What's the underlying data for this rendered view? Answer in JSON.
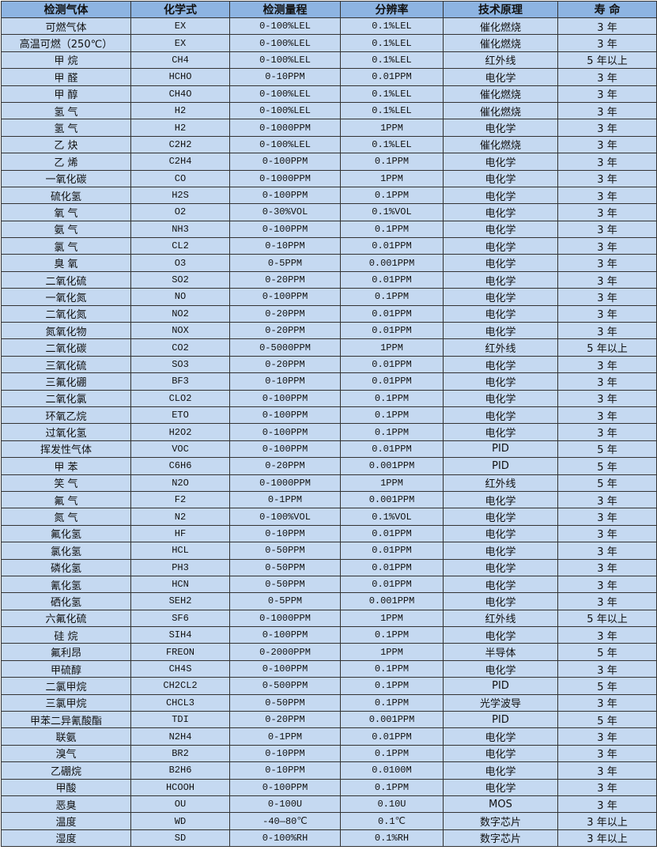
{
  "colors": {
    "header_bg": "#8db4e2",
    "row_bg": "#c5d9f1",
    "border": "#333333"
  },
  "headers": [
    "检测气体",
    "化学式",
    "检测量程",
    "分辨率",
    "技术原理",
    "寿 命"
  ],
  "rows": [
    [
      "可燃气体",
      "EX",
      "0-100%LEL",
      "0.1%LEL",
      "催化燃烧",
      "3 年"
    ],
    [
      "高温可燃（250℃）",
      "EX",
      "0-100%LEL",
      "0.1%LEL",
      "催化燃烧",
      "3 年"
    ],
    [
      "甲 烷",
      "CH4",
      "0-100%LEL",
      "0.1%LEL",
      "红外线",
      "5 年以上"
    ],
    [
      "甲 醛",
      "HCHO",
      "0-10PPM",
      "0.01PPM",
      "电化学",
      "3 年"
    ],
    [
      "甲 醇",
      "CH4O",
      "0-100%LEL",
      "0.1%LEL",
      "催化燃烧",
      "3 年"
    ],
    [
      "氢 气",
      "H2",
      "0-100%LEL",
      "0.1%LEL",
      "催化燃烧",
      "3 年"
    ],
    [
      "氢 气",
      "H2",
      "0-1000PPM",
      "1PPM",
      "电化学",
      "3 年"
    ],
    [
      "乙 炔",
      "C2H2",
      "0-100%LEL",
      "0.1%LEL",
      "催化燃烧",
      "3 年"
    ],
    [
      "乙 烯",
      "C2H4",
      "0-100PPM",
      "0.1PPM",
      "电化学",
      "3 年"
    ],
    [
      "一氧化碳",
      "CO",
      "0-1000PPM",
      "1PPM",
      "电化学",
      "3 年"
    ],
    [
      "硫化氢",
      "H2S",
      "0-100PPM",
      "0.1PPM",
      "电化学",
      "3 年"
    ],
    [
      "氧 气",
      "O2",
      "0-30%VOL",
      "0.1%VOL",
      "电化学",
      "3 年"
    ],
    [
      "氨 气",
      "NH3",
      "0-100PPM",
      "0.1PPM",
      "电化学",
      "3 年"
    ],
    [
      "氯 气",
      "CL2",
      "0-10PPM",
      "0.01PPM",
      "电化学",
      "3 年"
    ],
    [
      "臭 氧",
      "O3",
      "0-5PPM",
      "0.001PPM",
      "电化学",
      "3 年"
    ],
    [
      "二氧化硫",
      "SO2",
      "0-20PPM",
      "0.01PPM",
      "电化学",
      "3 年"
    ],
    [
      "一氧化氮",
      "NO",
      "0-100PPM",
      "0.1PPM",
      "电化学",
      "3 年"
    ],
    [
      "二氧化氮",
      "NO2",
      "0-20PPM",
      "0.01PPM",
      "电化学",
      "3 年"
    ],
    [
      "氮氧化物",
      "NOX",
      "0-20PPM",
      "0.01PPM",
      "电化学",
      "3 年"
    ],
    [
      "二氧化碳",
      "CO2",
      "0-5000PPM",
      "1PPM",
      "红外线",
      "5 年以上"
    ],
    [
      "三氧化硫",
      "SO3",
      "0-20PPM",
      "0.01PPM",
      "电化学",
      "3 年"
    ],
    [
      "三氟化硼",
      "BF3",
      "0-10PPM",
      "0.01PPM",
      "电化学",
      "3 年"
    ],
    [
      "二氧化氯",
      "CLO2",
      "0-100PPM",
      "0.1PPM",
      "电化学",
      "3 年"
    ],
    [
      "环氧乙烷",
      "ETO",
      "0-100PPM",
      "0.1PPM",
      "电化学",
      "3 年"
    ],
    [
      "过氧化氢",
      "H2O2",
      "0-100PPM",
      "0.1PPM",
      "电化学",
      "3 年"
    ],
    [
      "挥发性气体",
      "VOC",
      "0-100PPM",
      "0.01PPM",
      "PID",
      "5 年"
    ],
    [
      "甲 苯",
      "C6H6",
      "0-20PPM",
      "0.001PPM",
      "PID",
      "5 年"
    ],
    [
      "笑 气",
      "N2O",
      "0-1000PPM",
      "1PPM",
      "红外线",
      "5 年"
    ],
    [
      "氟 气",
      "F2",
      "0-1PPM",
      "0.001PPM",
      "电化学",
      "3 年"
    ],
    [
      "氮 气",
      "N2",
      "0-100%VOL",
      "0.1%VOL",
      "电化学",
      "3 年"
    ],
    [
      "氟化氢",
      "HF",
      "0-10PPM",
      "0.01PPM",
      "电化学",
      "3 年"
    ],
    [
      "氯化氢",
      "HCL",
      "0-50PPM",
      "0.01PPM",
      "电化学",
      "3 年"
    ],
    [
      "磷化氢",
      "PH3",
      "0-50PPM",
      "0.01PPM",
      "电化学",
      "3 年"
    ],
    [
      "氰化氢",
      "HCN",
      "0-50PPM",
      "0.01PPM",
      "电化学",
      "3 年"
    ],
    [
      "硒化氢",
      "SEH2",
      "0-5PPM",
      "0.001PPM",
      "电化学",
      "3 年"
    ],
    [
      "六氟化硫",
      "SF6",
      "0-1000PPM",
      "1PPM",
      "红外线",
      "5 年以上"
    ],
    [
      "硅 烷",
      "SIH4",
      "0-100PPM",
      "0.1PPM",
      "电化学",
      "3 年"
    ],
    [
      "氟利昂",
      "FREON",
      "0-2000PPM",
      "1PPM",
      "半导体",
      "5 年"
    ],
    [
      "甲硫醇",
      "CH4S",
      "0-100PPM",
      "0.1PPM",
      "电化学",
      "3 年"
    ],
    [
      "二氯甲烷",
      "CH2CL2",
      "0-500PPM",
      "0.1PPM",
      "PID",
      "5 年"
    ],
    [
      "三氯甲烷",
      "CHCL3",
      "0-50PPM",
      "0.1PPM",
      "光学波导",
      "3 年"
    ],
    [
      "甲苯二异氰酸酯",
      "TDI",
      "0-20PPM",
      "0.001PPM",
      "PID",
      "5 年"
    ],
    [
      "联氨",
      "N2H4",
      "0-1PPM",
      "0.01PPM",
      "电化学",
      "3 年"
    ],
    [
      "溴气",
      "BR2",
      "0-10PPM",
      "0.1PPM",
      "电化学",
      "3 年"
    ],
    [
      "乙硼烷",
      "B2H6",
      "0-10PPM",
      "0.0100M",
      "电化学",
      "3 年"
    ],
    [
      "甲酸",
      "HCOOH",
      "0-100PPM",
      "0.1PPM",
      "电化学",
      "3 年"
    ],
    [
      "恶臭",
      "OU",
      "0-100U",
      "0.10U",
      "MOS",
      "3 年"
    ],
    [
      "温度",
      "WD",
      "-40—80℃",
      "0.1℃",
      "数字芯片",
      "3 年以上"
    ],
    [
      "湿度",
      "SD",
      "0-100%RH",
      "0.1%RH",
      "数字芯片",
      "3 年以上"
    ]
  ]
}
